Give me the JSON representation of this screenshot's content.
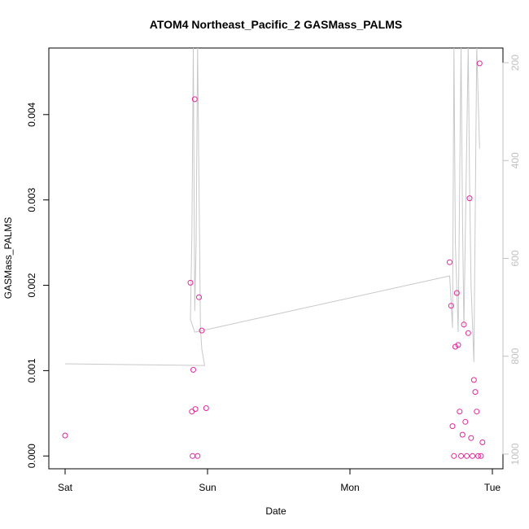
{
  "chart_data": {
    "type": "scatter",
    "title": "ATOM4 Northeast_Pacific_2 GASMass_PALMS",
    "xlabel": "Date",
    "ylabel": "GASMass_PALMS",
    "x_ticks": [
      "Sat",
      "Sun",
      "Mon",
      "Tue"
    ],
    "x_domain_days": [
      0,
      3.0
    ],
    "y_ticks": [
      "0.000",
      "0.001",
      "0.002",
      "0.003",
      "0.004"
    ],
    "ylim": [
      -0.00015,
      0.00478
    ],
    "y2_ticks": [
      "200",
      "400",
      "600",
      "800",
      "1000"
    ],
    "y2lim": [
      1030,
      170
    ],
    "point_color": "#e0289a",
    "profile_color": "#c8c8c8",
    "grid": false,
    "series": [
      {
        "values": [
          [
            0.0,
            0.00024
          ],
          [
            0.88,
            0.00203
          ],
          [
            0.89,
            0.00052
          ],
          [
            0.895,
            0.0
          ],
          [
            0.9,
            0.00101
          ],
          [
            0.91,
            0.00418
          ],
          [
            0.915,
            0.00055
          ],
          [
            0.93,
            0.0
          ],
          [
            0.94,
            0.00186
          ],
          [
            0.96,
            0.00147
          ],
          [
            0.99,
            0.00056
          ],
          [
            2.7,
            0.00227
          ],
          [
            2.71,
            0.00176
          ],
          [
            2.72,
            0.00035
          ],
          [
            2.73,
            0.0
          ],
          [
            2.74,
            0.00128
          ],
          [
            2.75,
            0.00191
          ],
          [
            2.76,
            0.0013
          ],
          [
            2.77,
            0.00052
          ],
          [
            2.78,
            0.0
          ],
          [
            2.79,
            0.00025
          ],
          [
            2.8,
            0.00154
          ],
          [
            2.81,
            0.0004
          ],
          [
            2.82,
            0.0
          ],
          [
            2.83,
            0.00144
          ],
          [
            2.84,
            0.00302
          ],
          [
            2.85,
            0.00021
          ],
          [
            2.86,
            0.0
          ],
          [
            2.87,
            0.00089
          ],
          [
            2.88,
            0.00075
          ],
          [
            2.89,
            0.00052
          ],
          [
            2.9,
            0.0
          ],
          [
            2.91,
            0.0046
          ],
          [
            2.92,
            0.0
          ],
          [
            2.93,
            0.00016
          ]
        ]
      }
    ],
    "profile": [
      [
        0.0,
        0.00108
      ],
      [
        0.98,
        0.00106
      ],
      [
        0.96,
        0.00125
      ],
      [
        0.95,
        0.0015
      ],
      [
        0.93,
        0.0048
      ],
      [
        0.92,
        0.0025
      ],
      [
        0.91,
        0.0017
      ],
      [
        0.9,
        0.0048
      ],
      [
        0.89,
        0.0026
      ],
      [
        0.88,
        0.0016
      ],
      [
        0.91,
        0.00145
      ],
      [
        2.7,
        0.00211
      ],
      [
        2.72,
        0.0015
      ],
      [
        2.73,
        0.0048
      ],
      [
        2.74,
        0.0025
      ],
      [
        2.76,
        0.00145
      ],
      [
        2.78,
        0.0048
      ],
      [
        2.79,
        0.0028
      ],
      [
        2.8,
        0.0015
      ],
      [
        2.83,
        0.0048
      ],
      [
        2.84,
        0.0032
      ],
      [
        2.85,
        0.002
      ],
      [
        2.87,
        0.0011
      ],
      [
        2.89,
        0.0048
      ],
      [
        2.9,
        0.0042
      ],
      [
        2.91,
        0.0036
      ]
    ]
  }
}
